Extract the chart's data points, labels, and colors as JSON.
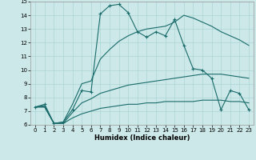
{
  "xlabel": "Humidex (Indice chaleur)",
  "xlim": [
    -0.5,
    23.5
  ],
  "ylim": [
    6,
    15
  ],
  "yticks": [
    6,
    7,
    8,
    9,
    10,
    11,
    12,
    13,
    14,
    15
  ],
  "xticks": [
    0,
    1,
    2,
    3,
    4,
    5,
    6,
    7,
    8,
    9,
    10,
    11,
    12,
    13,
    14,
    15,
    16,
    17,
    18,
    19,
    20,
    21,
    22,
    23
  ],
  "bg_color": "#cce8e8",
  "line_color": "#1a6b6b",
  "series": [
    [
      7.3,
      7.5,
      6.1,
      6.2,
      7.1,
      8.5,
      8.4,
      14.1,
      14.7,
      14.8,
      14.2,
      12.8,
      12.4,
      12.8,
      12.5,
      13.7,
      11.8,
      10.1,
      10.0,
      9.4,
      7.1,
      8.5,
      8.3,
      7.1
    ],
    [
      7.3,
      7.4,
      6.1,
      6.2,
      7.5,
      9.0,
      9.2,
      10.8,
      11.5,
      12.1,
      12.5,
      12.8,
      13.0,
      13.1,
      13.2,
      13.5,
      14.0,
      13.8,
      13.5,
      13.2,
      12.8,
      12.5,
      12.2,
      11.8
    ],
    [
      7.3,
      7.3,
      6.1,
      6.1,
      6.9,
      7.6,
      7.9,
      8.3,
      8.5,
      8.7,
      8.9,
      9.0,
      9.1,
      9.2,
      9.3,
      9.4,
      9.5,
      9.6,
      9.7,
      9.7,
      9.7,
      9.6,
      9.5,
      9.4
    ],
    [
      7.3,
      7.3,
      6.1,
      6.1,
      6.5,
      6.8,
      7.0,
      7.2,
      7.3,
      7.4,
      7.5,
      7.5,
      7.6,
      7.6,
      7.7,
      7.7,
      7.7,
      7.7,
      7.8,
      7.8,
      7.8,
      7.7,
      7.7,
      7.6
    ]
  ]
}
